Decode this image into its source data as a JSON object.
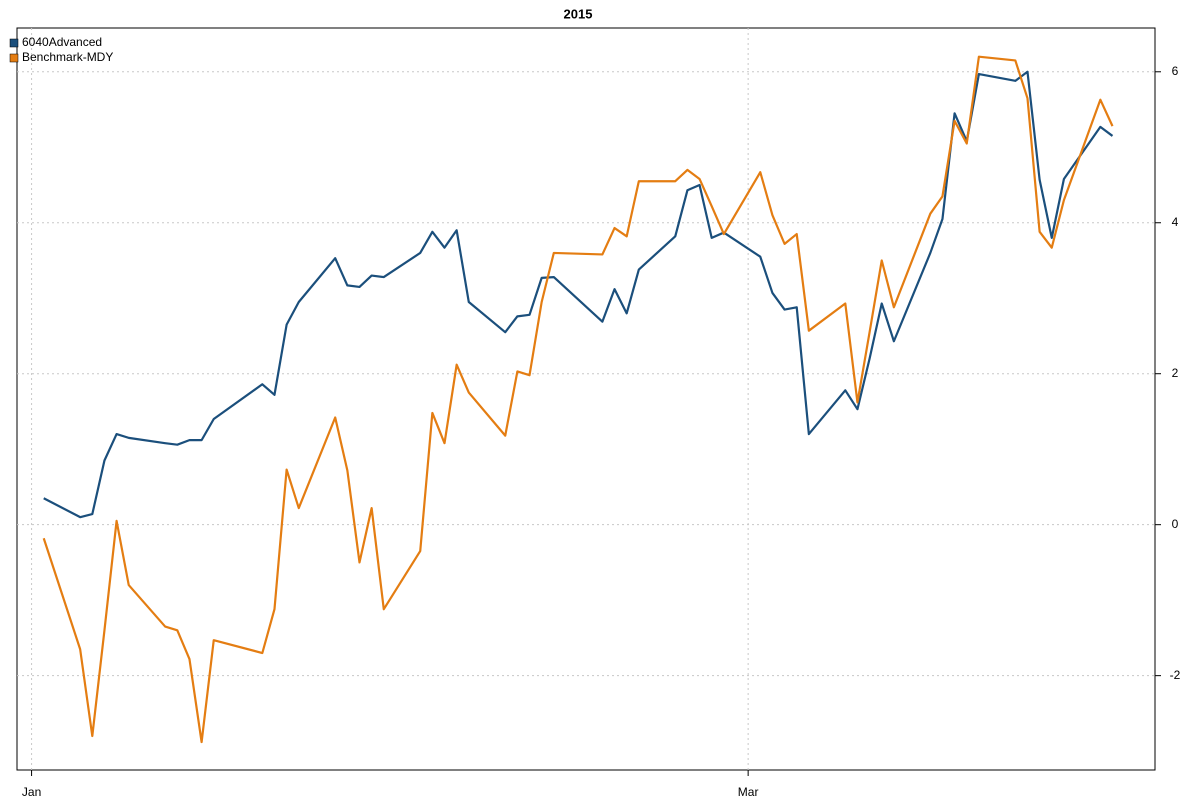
{
  "chart_data": {
    "type": "line",
    "title": "2015",
    "x": [
      1,
      4,
      5,
      6,
      7,
      8,
      11,
      12,
      13,
      14,
      15,
      19,
      20,
      21,
      22,
      25,
      26,
      27,
      28,
      29,
      32,
      33,
      34,
      35,
      36,
      39,
      40,
      41,
      42,
      43,
      47,
      48,
      49,
      50,
      53,
      54,
      55,
      56,
      57,
      60,
      61,
      62,
      63,
      64,
      67,
      68,
      69,
      70,
      71,
      74,
      75,
      76,
      77,
      78,
      81,
      82,
      83,
      84,
      85,
      88,
      89
    ],
    "xlim": [
      -1.2,
      92.5
    ],
    "xticks": [
      {
        "value": 0,
        "label": "Jan"
      },
      {
        "value": 59,
        "label": "Mar"
      }
    ],
    "ylim": [
      -3.25,
      6.58
    ],
    "yticks": [
      -2,
      0,
      2,
      4,
      6
    ],
    "grid": true,
    "legend": "topleft",
    "series": [
      {
        "name": "6040Advanced",
        "color": "#1b4f7c",
        "values": [
          0.35,
          0.1,
          0.14,
          0.85,
          1.2,
          1.15,
          1.08,
          1.06,
          1.12,
          1.12,
          1.4,
          1.86,
          1.72,
          2.65,
          2.95,
          3.53,
          3.17,
          3.15,
          3.3,
          3.28,
          3.6,
          3.88,
          3.67,
          3.9,
          2.95,
          2.55,
          2.76,
          2.78,
          3.27,
          3.28,
          2.69,
          3.12,
          2.8,
          3.38,
          3.82,
          4.43,
          4.5,
          3.8,
          3.87,
          3.55,
          3.07,
          2.85,
          2.88,
          1.2,
          1.78,
          1.53,
          2.2,
          2.93,
          2.43,
          3.6,
          4.05,
          5.45,
          5.08,
          5.97,
          5.88,
          6.0,
          4.57,
          3.8,
          4.58,
          5.27,
          5.15
        ]
      },
      {
        "name": "Benchmark-MDY",
        "color": "#e47d12",
        "values": [
          -0.18,
          -1.65,
          -2.8,
          -1.4,
          0.05,
          -0.8,
          -1.35,
          -1.4,
          -1.78,
          -2.88,
          -1.53,
          -1.7,
          -1.12,
          0.73,
          0.22,
          1.42,
          0.72,
          -0.5,
          0.22,
          -1.12,
          -0.35,
          1.48,
          1.08,
          2.12,
          1.75,
          1.18,
          2.03,
          1.98,
          2.95,
          3.6,
          3.58,
          3.93,
          3.82,
          4.55,
          4.55,
          4.7,
          4.58,
          4.22,
          3.85,
          4.67,
          4.1,
          3.72,
          3.85,
          2.57,
          2.93,
          1.62,
          2.55,
          3.5,
          2.88,
          4.12,
          4.35,
          5.35,
          5.05,
          6.2,
          6.15,
          5.65,
          3.88,
          3.67,
          4.3,
          5.63,
          5.28
        ]
      }
    ]
  }
}
